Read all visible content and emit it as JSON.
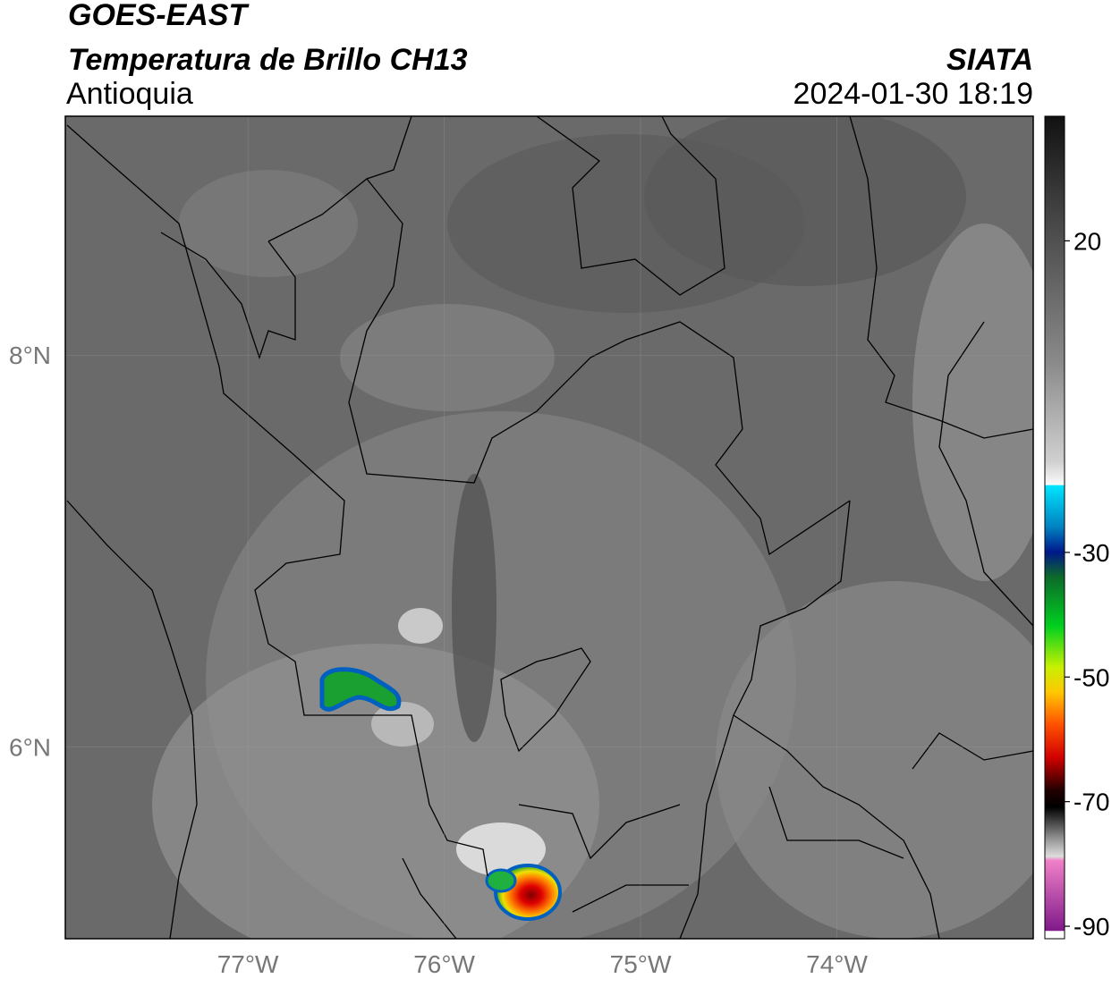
{
  "header": {
    "title": "GOES-EAST",
    "subtitle": "Temperatura de Brillo CH13",
    "region": "Antioquia",
    "source": "SIATA",
    "timestamp": "2024-01-30 18:19"
  },
  "map": {
    "xlim": [
      -77.93,
      -73.0
    ],
    "ylim": [
      5.02,
      9.22
    ],
    "xticks": [
      {
        "value": -77,
        "label": "77°W"
      },
      {
        "value": -76,
        "label": "76°W"
      },
      {
        "value": -75,
        "label": "75°W"
      },
      {
        "value": -74,
        "label": "74°W"
      }
    ],
    "yticks": [
      {
        "value": 8,
        "label": "8°N"
      },
      {
        "value": 6,
        "label": "6°N"
      }
    ],
    "grid": true
  },
  "colorbar": {
    "lim": [
      -92,
      40
    ],
    "ticks": [
      20,
      -30,
      -50,
      -70,
      -90
    ]
  }
}
